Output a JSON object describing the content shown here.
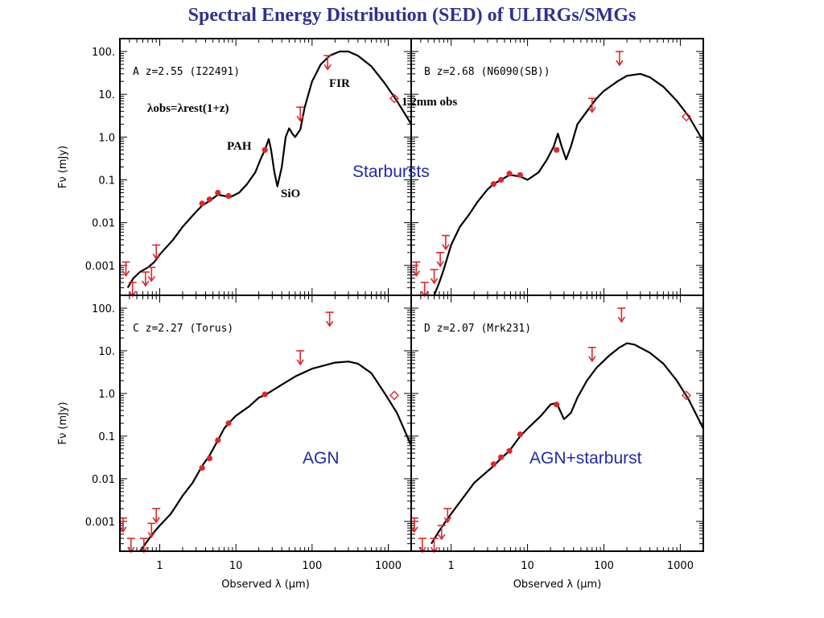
{
  "slide": {
    "title": "Spectral Energy Distribution (SED) of ULIRGs/SMGs"
  },
  "colors": {
    "title": "#2e3192",
    "region_label": "#1f2aa8",
    "marker": "#e0262b",
    "curve": "#000000",
    "axis": "#000000"
  },
  "annotations": {
    "fir": "FIR",
    "mm": "1.2mm obs",
    "lambda_relation": "λobs=λrest(1+z)",
    "pah": "PAH",
    "sio": "SiO",
    "starbursts": "Starbursts",
    "agn": "AGN",
    "agn_starburst": "AGN+starburst"
  },
  "chart_data": {
    "type": "scatter",
    "xlabel": "Observed λ (μm)",
    "ylabel": "Fν (mJy)",
    "xscale": "log",
    "yscale": "log",
    "xlim": [
      0.3,
      2000
    ],
    "ylim": [
      0.0002,
      200
    ],
    "xticklabels": [
      "1",
      "10",
      "100",
      "1000"
    ],
    "yticklabels": [
      "100.",
      "10.",
      "1.0",
      "0.1",
      "0.01",
      "0.001"
    ],
    "panels": [
      {
        "label": "A z=2.55 (I22491)",
        "curve": [
          [
            0.38,
            0.0003
          ],
          [
            0.45,
            0.0005
          ],
          [
            0.55,
            0.0007
          ],
          [
            0.7,
            0.0009
          ],
          [
            0.85,
            0.0012
          ],
          [
            1,
            0.0018
          ],
          [
            1.5,
            0.004
          ],
          [
            2,
            0.008
          ],
          [
            3,
            0.018
          ],
          [
            3.6,
            0.025
          ],
          [
            4.5,
            0.032
          ],
          [
            5.8,
            0.045
          ],
          [
            7,
            0.042
          ],
          [
            8.5,
            0.04
          ],
          [
            11,
            0.05
          ],
          [
            14,
            0.08
          ],
          [
            18,
            0.15
          ],
          [
            21,
            0.3
          ],
          [
            24,
            0.5
          ],
          [
            27,
            0.9
          ],
          [
            29,
            0.5
          ],
          [
            32,
            0.15
          ],
          [
            35,
            0.07
          ],
          [
            40,
            0.2
          ],
          [
            45,
            1
          ],
          [
            50,
            1.6
          ],
          [
            55,
            1.2
          ],
          [
            60,
            1
          ],
          [
            70,
            1.5
          ],
          [
            80,
            5
          ],
          [
            100,
            20
          ],
          [
            130,
            50
          ],
          [
            170,
            80
          ],
          [
            230,
            100
          ],
          [
            300,
            100
          ],
          [
            400,
            80
          ],
          [
            600,
            45
          ],
          [
            900,
            18
          ],
          [
            1300,
            7
          ],
          [
            2000,
            2
          ]
        ],
        "detections": [
          [
            3.6,
            0.028
          ],
          [
            4.5,
            0.035
          ],
          [
            5.8,
            0.05
          ],
          [
            8,
            0.042
          ],
          [
            24,
            0.5
          ]
        ],
        "upper_limits": [
          [
            0.36,
            0.0012
          ],
          [
            0.44,
            0.0004
          ],
          [
            0.65,
            0.0007
          ],
          [
            0.78,
            0.0009
          ],
          [
            0.9,
            0.003
          ],
          [
            70,
            5
          ],
          [
            160,
            80
          ]
        ],
        "submm": [
          [
            1200,
            8
          ]
        ]
      },
      {
        "label": "B z=2.68 (N6090(SB))",
        "curve": [
          [
            0.6,
            0.0002
          ],
          [
            0.7,
            0.0004
          ],
          [
            0.8,
            0.0008
          ],
          [
            1,
            0.003
          ],
          [
            1.3,
            0.008
          ],
          [
            1.7,
            0.015
          ],
          [
            2.2,
            0.03
          ],
          [
            3,
            0.06
          ],
          [
            3.6,
            0.08
          ],
          [
            4.5,
            0.1
          ],
          [
            5.8,
            0.13
          ],
          [
            8,
            0.12
          ],
          [
            10,
            0.1
          ],
          [
            14,
            0.15
          ],
          [
            18,
            0.3
          ],
          [
            22,
            0.6
          ],
          [
            25,
            1.2
          ],
          [
            28,
            0.6
          ],
          [
            32,
            0.3
          ],
          [
            37,
            0.6
          ],
          [
            45,
            2
          ],
          [
            60,
            4
          ],
          [
            80,
            8
          ],
          [
            100,
            12
          ],
          [
            150,
            20
          ],
          [
            200,
            27
          ],
          [
            300,
            30
          ],
          [
            400,
            25
          ],
          [
            600,
            15
          ],
          [
            900,
            7
          ],
          [
            1300,
            3
          ],
          [
            2000,
            0.8
          ]
        ],
        "detections": [
          [
            3.6,
            0.08
          ],
          [
            4.5,
            0.1
          ],
          [
            5.8,
            0.14
          ],
          [
            8,
            0.13
          ],
          [
            24,
            0.5
          ]
        ],
        "upper_limits": [
          [
            0.35,
            0.0012
          ],
          [
            0.45,
            0.0004
          ],
          [
            0.6,
            0.0008
          ],
          [
            0.72,
            0.002
          ],
          [
            0.85,
            0.005
          ],
          [
            70,
            8
          ],
          [
            160,
            100
          ]
        ],
        "submm": [
          [
            1200,
            3
          ]
        ]
      },
      {
        "label": "C z=2.27 (Torus)",
        "curve": [
          [
            0.55,
            0.0002
          ],
          [
            0.65,
            0.0003
          ],
          [
            0.8,
            0.0005
          ],
          [
            1,
            0.0008
          ],
          [
            1.4,
            0.0015
          ],
          [
            2,
            0.004
          ],
          [
            2.7,
            0.008
          ],
          [
            3.6,
            0.02
          ],
          [
            4.5,
            0.035
          ],
          [
            5.8,
            0.08
          ],
          [
            7,
            0.15
          ],
          [
            8,
            0.2
          ],
          [
            10,
            0.3
          ],
          [
            15,
            0.5
          ],
          [
            20,
            0.8
          ],
          [
            25,
            0.95
          ],
          [
            40,
            1.6
          ],
          [
            60,
            2.5
          ],
          [
            100,
            3.8
          ],
          [
            200,
            5.3
          ],
          [
            300,
            5.6
          ],
          [
            400,
            5
          ],
          [
            600,
            3
          ],
          [
            900,
            1
          ],
          [
            1300,
            0.35
          ],
          [
            2000,
            0.06
          ]
        ],
        "detections": [
          [
            3.6,
            0.018
          ],
          [
            4.5,
            0.03
          ],
          [
            5.8,
            0.08
          ],
          [
            8,
            0.2
          ],
          [
            24,
            0.95
          ]
        ],
        "upper_limits": [
          [
            0.33,
            0.0012
          ],
          [
            0.42,
            0.0004
          ],
          [
            0.62,
            0.0004
          ],
          [
            0.78,
            0.0009
          ],
          [
            0.9,
            0.002
          ],
          [
            70,
            10
          ],
          [
            170,
            80
          ]
        ],
        "submm": [
          [
            1200,
            0.9
          ]
        ]
      },
      {
        "label": "D z=2.07 (Mrk231)",
        "curve": [
          [
            0.55,
            0.0003
          ],
          [
            0.7,
            0.0006
          ],
          [
            0.85,
            0.001
          ],
          [
            1,
            0.0015
          ],
          [
            1.5,
            0.004
          ],
          [
            2,
            0.008
          ],
          [
            3,
            0.015
          ],
          [
            3.6,
            0.02
          ],
          [
            4.5,
            0.03
          ],
          [
            5.8,
            0.045
          ],
          [
            8,
            0.1
          ],
          [
            10,
            0.15
          ],
          [
            15,
            0.3
          ],
          [
            20,
            0.55
          ],
          [
            24,
            0.6
          ],
          [
            30,
            0.25
          ],
          [
            37,
            0.35
          ],
          [
            45,
            0.8
          ],
          [
            60,
            2
          ],
          [
            80,
            4
          ],
          [
            120,
            8
          ],
          [
            160,
            12
          ],
          [
            200,
            15
          ],
          [
            250,
            14
          ],
          [
            400,
            9
          ],
          [
            600,
            5
          ],
          [
            900,
            2
          ],
          [
            1300,
            0.7
          ],
          [
            2000,
            0.15
          ]
        ],
        "detections": [
          [
            3.6,
            0.022
          ],
          [
            4.5,
            0.032
          ],
          [
            5.8,
            0.045
          ],
          [
            8,
            0.11
          ],
          [
            24,
            0.55
          ]
        ],
        "upper_limits": [
          [
            0.33,
            0.0012
          ],
          [
            0.42,
            0.0004
          ],
          [
            0.6,
            0.0004
          ],
          [
            0.75,
            0.0008
          ],
          [
            0.9,
            0.002
          ],
          [
            70,
            12
          ],
          [
            170,
            100
          ]
        ],
        "submm": [
          [
            1200,
            0.9
          ]
        ]
      }
    ]
  }
}
